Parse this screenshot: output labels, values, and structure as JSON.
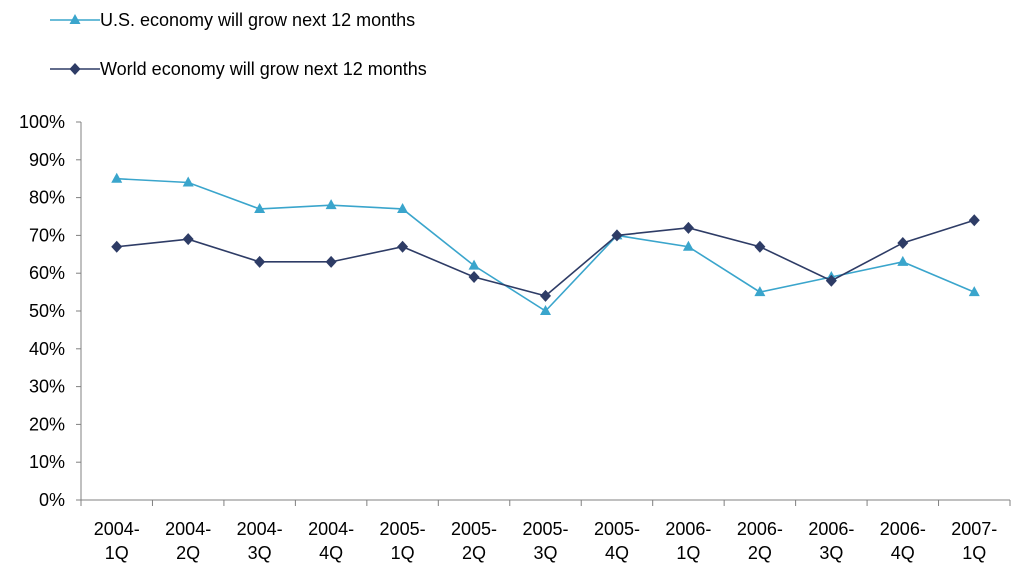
{
  "chart_data": {
    "type": "line",
    "title": "",
    "xlabel": "",
    "ylabel": "",
    "categories": [
      [
        "2004-",
        "1Q"
      ],
      [
        "2004-",
        "2Q"
      ],
      [
        "2004-",
        "3Q"
      ],
      [
        "2004-",
        "4Q"
      ],
      [
        "2005-",
        "1Q"
      ],
      [
        "2005-",
        "2Q"
      ],
      [
        "2005-",
        "3Q"
      ],
      [
        "2005-",
        "4Q"
      ],
      [
        "2006-",
        "1Q"
      ],
      [
        "2006-",
        "2Q"
      ],
      [
        "2006-",
        "3Q"
      ],
      [
        "2006-",
        "4Q"
      ],
      [
        "2007-",
        "1Q"
      ]
    ],
    "ylim": [
      0,
      100
    ],
    "yticks": [
      0,
      10,
      20,
      30,
      40,
      50,
      60,
      70,
      80,
      90,
      100
    ],
    "ytick_suffix": "%",
    "grid": false,
    "legend_placement": "top-left",
    "series": [
      {
        "name": "U.S. economy will grow next 12 months",
        "marker": "triangle",
        "color": "#3AA5CC",
        "values": [
          85,
          84,
          77,
          78,
          77,
          62,
          50,
          70,
          67,
          55,
          59,
          63,
          55
        ]
      },
      {
        "name": "World economy will grow next 12 months",
        "marker": "diamond",
        "color": "#2E3C66",
        "values": [
          67,
          69,
          63,
          63,
          67,
          59,
          54,
          70,
          72,
          67,
          58,
          68,
          74
        ]
      }
    ]
  }
}
